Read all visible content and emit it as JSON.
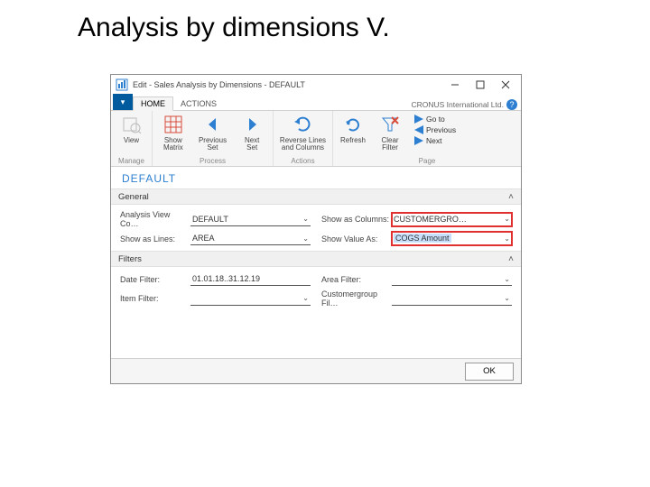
{
  "slide": {
    "title": "Analysis by dimensions V."
  },
  "window": {
    "title": "Edit - Sales Analysis by Dimensions - DEFAULT",
    "company": "CRONUS International Ltd."
  },
  "tabs": {
    "file_glyph": "▾",
    "home": "HOME",
    "actions": "ACTIONS"
  },
  "ribbon": {
    "manage": {
      "view": "View",
      "label": "Manage"
    },
    "process": {
      "show_matrix": "Show\nMatrix",
      "prev_set": "Previous\nSet",
      "next_set": "Next\nSet",
      "label": "Process"
    },
    "actions": {
      "reverse": "Reverse Lines\nand Columns",
      "label": "Actions"
    },
    "page": {
      "refresh": "Refresh",
      "clear_filter": "Clear\nFilter",
      "goto": "Go to",
      "previous": "Previous",
      "next": "Next",
      "label": "Page"
    }
  },
  "view_name": "DEFAULT",
  "sections": {
    "general": "General",
    "filters": "Filters",
    "collapse": "˄"
  },
  "general": {
    "analysis_view_code": {
      "label": "Analysis View Co…",
      "value": "DEFAULT"
    },
    "show_as_lines": {
      "label": "Show as Lines:",
      "value": "AREA"
    },
    "show_as_columns": {
      "label": "Show as Columns:",
      "value": "CUSTOMERGRO…"
    },
    "show_value_as": {
      "label": "Show Value As:",
      "value": "COGS Amount"
    }
  },
  "filters": {
    "date_filter": {
      "label": "Date Filter:",
      "value": "01.01.18..31.12.19"
    },
    "item_filter": {
      "label": "Item Filter:",
      "value": ""
    },
    "area_filter": {
      "label": "Area Filter:",
      "value": ""
    },
    "custgrp_filter": {
      "label": "Customergroup Fil…",
      "value": ""
    }
  },
  "footer": {
    "ok": "OK"
  },
  "colors": {
    "accent": "#2d7fd1",
    "highlight_border": "#e03030",
    "highlight_fill": "#c7dffb"
  }
}
